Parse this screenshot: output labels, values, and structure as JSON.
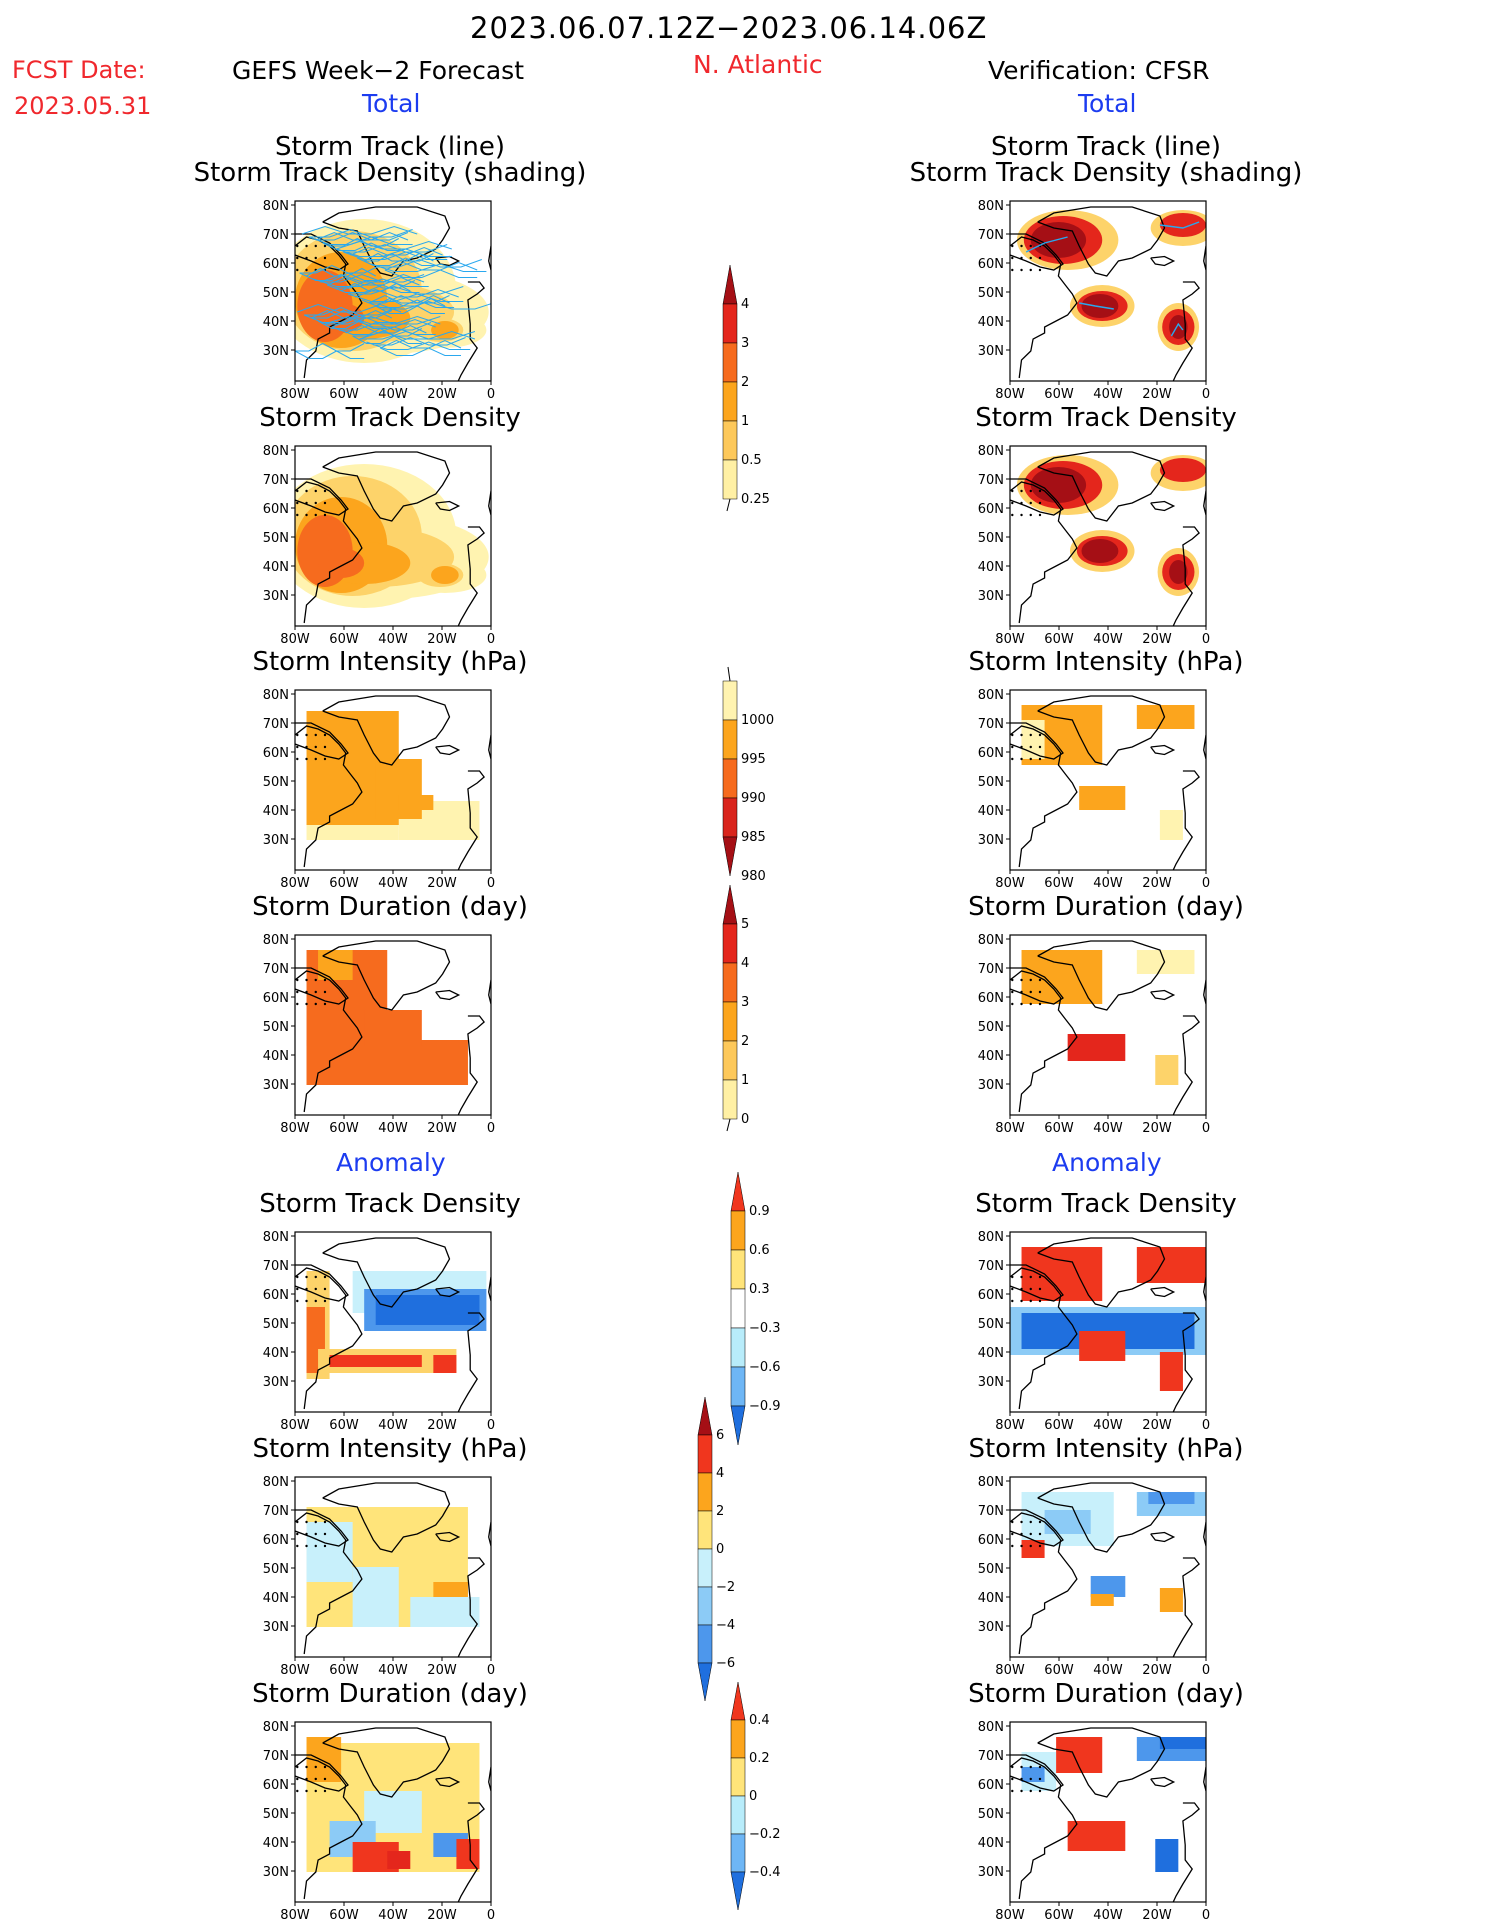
{
  "header": {
    "date_range": "2023.06.07.12Z−2023.06.14.06Z",
    "fcst_label": "FCST Date:",
    "fcst_date": "2023.05.31",
    "left_title": "GEFS Week−2 Forecast",
    "region": "N. Atlantic",
    "right_title": "Verification: CFSR",
    "left_sub": "Total",
    "right_sub": "Total",
    "anomaly_left": "Anomaly",
    "anomaly_right": "Anomaly"
  },
  "panel_titles": {
    "track_line": "Storm Track (line)",
    "track_shading": "Storm Track Density (shading)",
    "density": "Storm Track Density",
    "intensity": "Storm Intensity (hPa)",
    "duration": "Storm Duration (day)"
  },
  "map_axes": {
    "lat_labels": [
      "80N",
      "70N",
      "60N",
      "50N",
      "40N",
      "30N"
    ],
    "lon_labels": [
      "80W",
      "60W",
      "40W",
      "20W",
      "0"
    ]
  },
  "colorbars": [
    {
      "name": "track-density-total",
      "labels": [
        "4",
        "3",
        "2",
        "1",
        "0.5",
        "0.25"
      ],
      "colors": [
        "#a50f15",
        "#e4261c",
        "#f66b1e",
        "#fca51d",
        "#fdc85a",
        "#fff0a4"
      ]
    },
    {
      "name": "intensity-total",
      "labels": [
        "1000",
        "995",
        "990",
        "985",
        "980"
      ],
      "colors": [
        "#fff3b0",
        "#fca51d",
        "#f66b1e",
        "#d9241c",
        "#a50f15"
      ]
    },
    {
      "name": "duration-total",
      "labels": [
        "5",
        "4",
        "3",
        "2",
        "1",
        "0"
      ],
      "colors": [
        "#a50f15",
        "#e4261c",
        "#f66b1e",
        "#fca51d",
        "#fdc85a",
        "#fff0a4"
      ]
    },
    {
      "name": "density-anomaly",
      "labels": [
        "0.9",
        "0.6",
        "0.3",
        "−0.3",
        "−0.6",
        "−0.9"
      ],
      "colors": [
        "#f0361e",
        "#fca51d",
        "#ffe47a",
        "#ffffff",
        "#b8ecfa",
        "#6eb6f5",
        "#1f6fde"
      ]
    },
    {
      "name": "intensity-anomaly",
      "labels": [
        "6",
        "4",
        "2",
        "0",
        "−2",
        "−4",
        "−6"
      ],
      "colors": [
        "#a50f15",
        "#f0361e",
        "#fca51d",
        "#ffe47a",
        "#c8f0fb",
        "#8ccbf6",
        "#4d97ec",
        "#1f6fde"
      ]
    },
    {
      "name": "duration-anomaly",
      "labels": [
        "0.4",
        "0.2",
        "0",
        "−0.2",
        "−0.4"
      ],
      "colors": [
        "#f0361e",
        "#fca51d",
        "#ffe47a",
        "#b8ecfa",
        "#6eb6f5",
        "#1f6fde"
      ]
    }
  ],
  "colors": {
    "title_red": "#f0282d",
    "subtitle_blue": "#1c3cf0",
    "track_line": "#2aa8ee"
  }
}
